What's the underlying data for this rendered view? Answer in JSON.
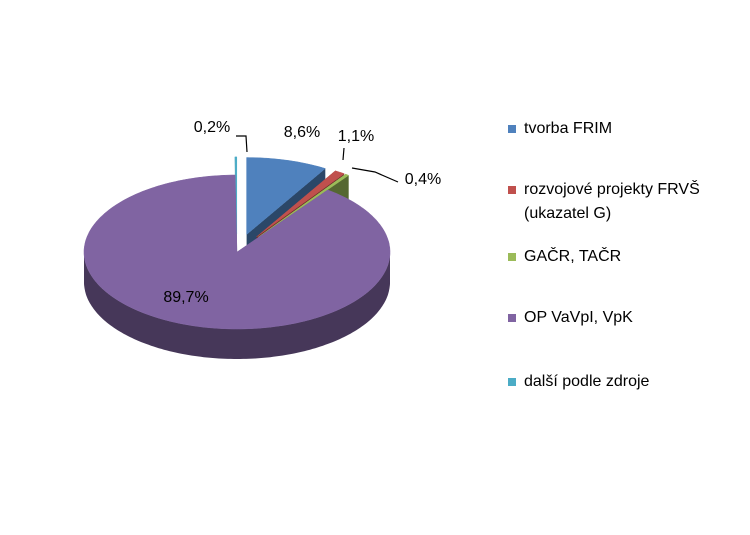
{
  "chart_data": {
    "type": "pie",
    "categories": [
      "tvorba FRIM",
      "rozvojové projekty FRVŠ (ukazatel G)",
      "GAČR, TAČR",
      "OP VaVpI, VpK",
      "další podle zdroje"
    ],
    "values": [
      8.6,
      1.1,
      0.4,
      89.7,
      0.2
    ],
    "value_labels": [
      "8,6%",
      "1,1%",
      "0,4%",
      "89,7%",
      "0,2%"
    ],
    "colors": [
      "#4f81bd",
      "#c0504d",
      "#9bbb59",
      "#8064a2",
      "#4bacc6"
    ]
  }
}
